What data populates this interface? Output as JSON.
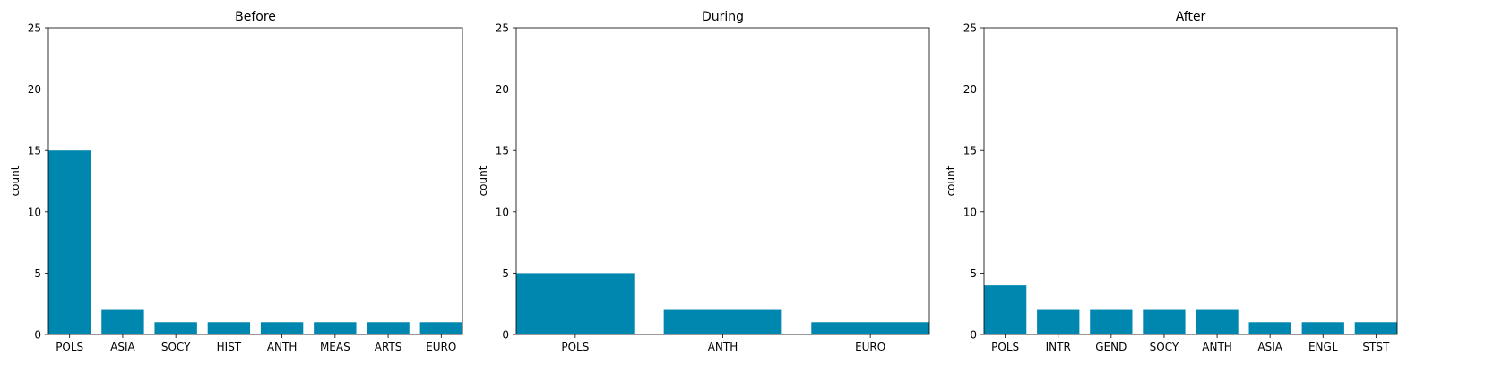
{
  "chart_data": [
    {
      "type": "bar",
      "title": "Before",
      "ylabel": "count",
      "xlabel": "",
      "ylim": [
        0,
        25
      ],
      "yticks": [
        0,
        5,
        10,
        15,
        20,
        25
      ],
      "categories": [
        "POLS",
        "ASIA",
        "SOCY",
        "HIST",
        "ANTH",
        "MEAS",
        "ARTS",
        "EURO"
      ],
      "values": [
        15,
        2,
        1,
        1,
        1,
        1,
        1,
        1
      ],
      "grid": false,
      "bar_color": "#0087b0"
    },
    {
      "type": "bar",
      "title": "During",
      "ylabel": "count",
      "xlabel": "",
      "ylim": [
        0,
        25
      ],
      "yticks": [
        0,
        5,
        10,
        15,
        20,
        25
      ],
      "categories": [
        "POLS",
        "ANTH",
        "EURO"
      ],
      "values": [
        5,
        2,
        1
      ],
      "grid": false,
      "bar_color": "#0087b0"
    },
    {
      "type": "bar",
      "title": "After",
      "ylabel": "count",
      "xlabel": "",
      "ylim": [
        0,
        25
      ],
      "yticks": [
        0,
        5,
        10,
        15,
        20,
        25
      ],
      "categories": [
        "POLS",
        "INTR",
        "GEND",
        "SOCY",
        "ANTH",
        "ASIA",
        "ENGL",
        "STST"
      ],
      "values": [
        4,
        2,
        2,
        2,
        2,
        1,
        1,
        1
      ],
      "grid": false,
      "bar_color": "#0087b0"
    }
  ]
}
